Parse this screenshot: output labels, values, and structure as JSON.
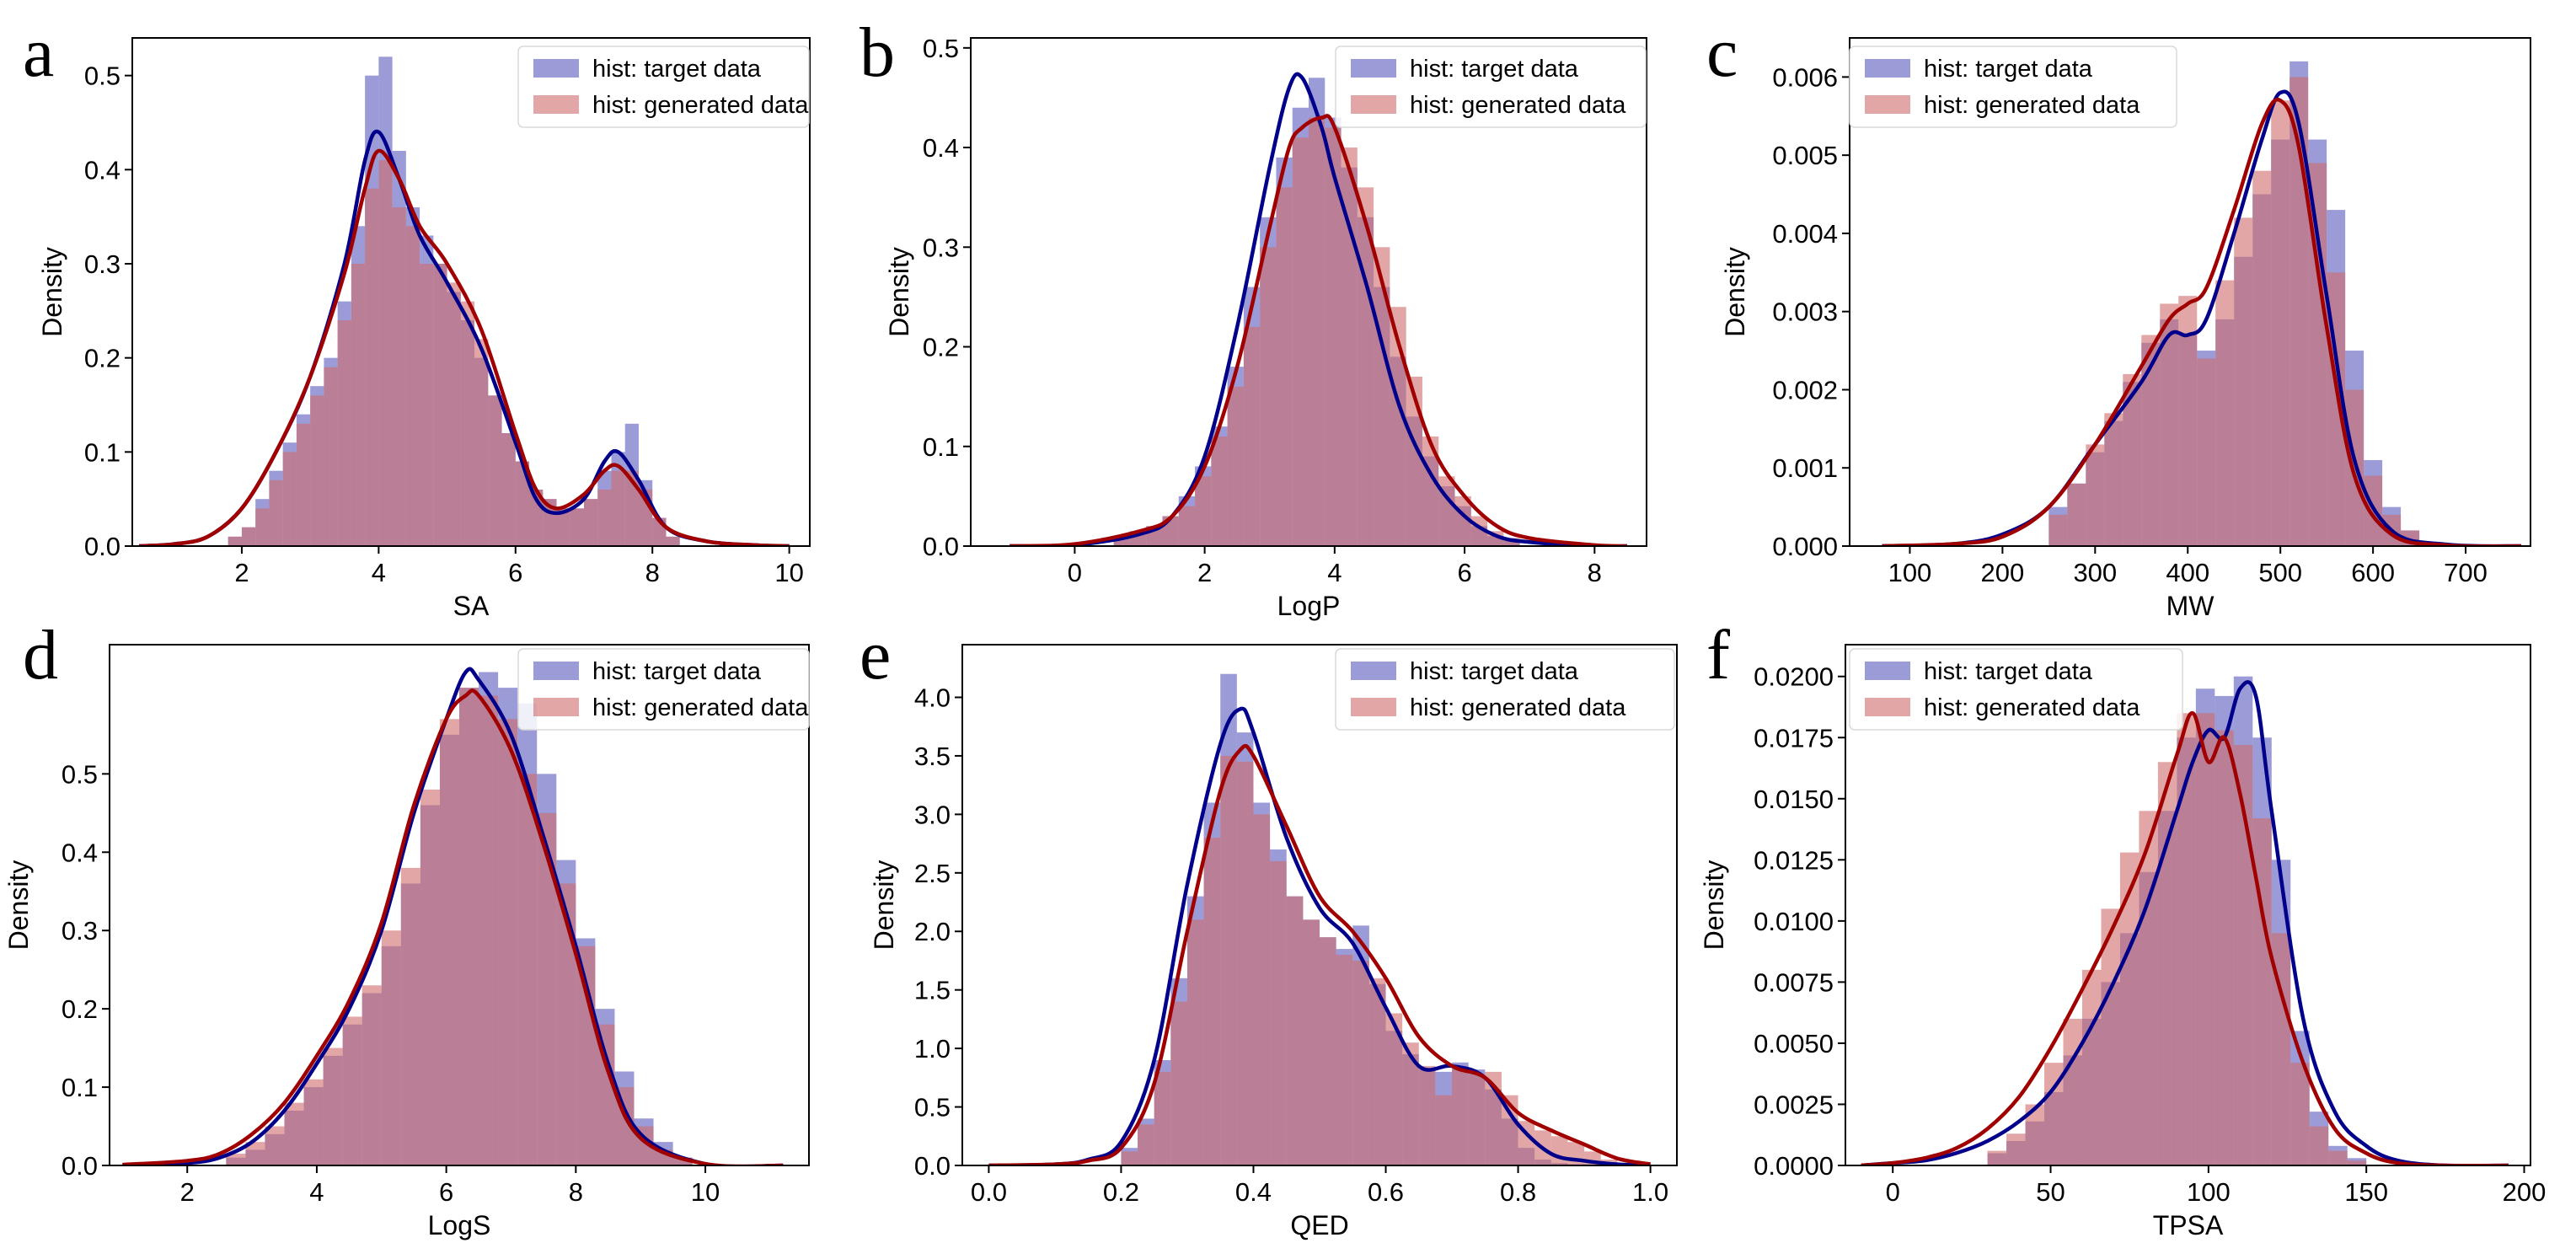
{
  "colors": {
    "target_hist": "#6b6bc6",
    "generated_hist": "#cf6a6a",
    "target_kde": "#00008b",
    "generated_kde": "#a00000",
    "axes": "#000000",
    "background": "#ffffff"
  },
  "legend": {
    "target": "hist: target data",
    "generated": "hist: generated data"
  },
  "chart_data": [
    {
      "panel": "a",
      "type": "area",
      "xlabel": "SA",
      "ylabel": "Density",
      "xlim": [
        0.4,
        10.3
      ],
      "ylim": [
        0,
        0.54
      ],
      "xticks": [
        2,
        4,
        6,
        8,
        10
      ],
      "xtick_labels": [
        "2",
        "4",
        "6",
        "8",
        "10"
      ],
      "yticks": [
        0,
        0.1,
        0.2,
        0.3,
        0.4,
        0.5
      ],
      "ytick_labels": [
        "0.0",
        "0.1",
        "0.2",
        "0.3",
        "0.4",
        "0.5"
      ],
      "bin_start": 1.8,
      "bin_width": 0.2,
      "hist_target": [
        0.01,
        0.02,
        0.05,
        0.08,
        0.11,
        0.14,
        0.17,
        0.2,
        0.26,
        0.34,
        0.5,
        0.52,
        0.42,
        0.36,
        0.33,
        0.3,
        0.27,
        0.24,
        0.2,
        0.16,
        0.12,
        0.09,
        0.06,
        0.05,
        0.04,
        0.04,
        0.05,
        0.08,
        0.1,
        0.13,
        0.07,
        0.03,
        0.01
      ],
      "hist_generated": [
        0.01,
        0.02,
        0.04,
        0.07,
        0.1,
        0.13,
        0.16,
        0.19,
        0.24,
        0.3,
        0.38,
        0.41,
        0.36,
        0.34,
        0.3,
        0.3,
        0.28,
        0.26,
        0.22,
        0.16,
        0.12,
        0.09,
        0.06,
        0.05,
        0.04,
        0.04,
        0.05,
        0.06,
        0.08,
        0.08,
        0.06,
        0.03,
        0.01
      ],
      "kde_x": [
        0.5,
        1.0,
        1.5,
        2.0,
        2.5,
        3.0,
        3.5,
        3.8,
        4.0,
        4.3,
        4.6,
        5.0,
        5.5,
        6.0,
        6.3,
        6.6,
        7.0,
        7.3,
        7.5,
        7.8,
        8.2,
        8.8,
        9.5,
        10.0
      ],
      "kde_target": [
        0.0,
        0.002,
        0.01,
        0.04,
        0.1,
        0.18,
        0.3,
        0.41,
        0.44,
        0.39,
        0.33,
        0.28,
        0.21,
        0.11,
        0.05,
        0.035,
        0.05,
        0.09,
        0.1,
        0.07,
        0.02,
        0.005,
        0.001,
        0.0
      ],
      "kde_generated": [
        0.0,
        0.002,
        0.01,
        0.04,
        0.1,
        0.18,
        0.29,
        0.38,
        0.42,
        0.39,
        0.34,
        0.3,
        0.23,
        0.12,
        0.06,
        0.04,
        0.055,
        0.08,
        0.085,
        0.06,
        0.02,
        0.005,
        0.001,
        0.0
      ]
    },
    {
      "panel": "b",
      "type": "area",
      "xlabel": "LogP",
      "ylabel": "Density",
      "xlim": [
        -1.6,
        8.8
      ],
      "ylim": [
        0,
        0.51
      ],
      "xticks": [
        0,
        2,
        4,
        6,
        8
      ],
      "xtick_labels": [
        "0",
        "2",
        "4",
        "6",
        "8"
      ],
      "yticks": [
        0,
        0.1,
        0.2,
        0.3,
        0.4,
        0.5
      ],
      "ytick_labels": [
        "0.0",
        "0.1",
        "0.2",
        "0.3",
        "0.4",
        "0.5"
      ],
      "bin_start": 0.6,
      "bin_width": 0.25,
      "hist_target": [
        0.01,
        0.015,
        0.02,
        0.03,
        0.05,
        0.08,
        0.12,
        0.18,
        0.26,
        0.33,
        0.39,
        0.44,
        0.47,
        0.43,
        0.38,
        0.33,
        0.26,
        0.19,
        0.13,
        0.09,
        0.06,
        0.04,
        0.02,
        0.01,
        0.005
      ],
      "hist_generated": [
        0.01,
        0.012,
        0.02,
        0.03,
        0.04,
        0.07,
        0.11,
        0.16,
        0.22,
        0.3,
        0.36,
        0.41,
        0.43,
        0.42,
        0.4,
        0.36,
        0.3,
        0.24,
        0.17,
        0.11,
        0.07,
        0.05,
        0.03,
        0.015,
        0.008
      ],
      "kde_x": [
        -1.0,
        0.0,
        1.0,
        1.5,
        2.0,
        2.5,
        3.0,
        3.3,
        3.5,
        3.8,
        4.0,
        4.5,
        5.0,
        5.5,
        6.0,
        6.5,
        7.0,
        8.0,
        8.5
      ],
      "kde_target": [
        0.0,
        0.001,
        0.012,
        0.03,
        0.09,
        0.22,
        0.38,
        0.46,
        0.47,
        0.42,
        0.37,
        0.26,
        0.14,
        0.07,
        0.03,
        0.01,
        0.004,
        0.0,
        0.0
      ],
      "kde_generated": [
        0.0,
        0.002,
        0.015,
        0.03,
        0.08,
        0.18,
        0.32,
        0.4,
        0.42,
        0.43,
        0.42,
        0.32,
        0.2,
        0.1,
        0.05,
        0.02,
        0.008,
        0.001,
        0.0
      ]
    },
    {
      "panel": "c",
      "type": "area",
      "xlabel": "MW",
      "ylabel": "Density",
      "xlim": [
        35,
        770
      ],
      "ylim": [
        0,
        0.0065
      ],
      "xticks": [
        100,
        200,
        300,
        400,
        500,
        600,
        700
      ],
      "xtick_labels": [
        "100",
        "200",
        "300",
        "400",
        "500",
        "600",
        "700"
      ],
      "yticks": [
        0,
        0.001,
        0.002,
        0.003,
        0.004,
        0.005,
        0.006
      ],
      "ytick_labels": [
        "0.000",
        "0.001",
        "0.002",
        "0.003",
        "0.004",
        "0.005",
        "0.006"
      ],
      "bin_start": 250,
      "bin_width": 20,
      "hist_target": [
        0.0005,
        0.0008,
        0.0012,
        0.0016,
        0.0021,
        0.0026,
        0.0029,
        0.0027,
        0.0025,
        0.0029,
        0.0037,
        0.0045,
        0.0052,
        0.0062,
        0.0052,
        0.0043,
        0.0025,
        0.0011,
        0.0005,
        0.0002
      ],
      "hist_generated": [
        0.0004,
        0.0008,
        0.0013,
        0.0017,
        0.0022,
        0.0027,
        0.0031,
        0.0032,
        0.0024,
        0.0034,
        0.0042,
        0.0048,
        0.0057,
        0.006,
        0.0049,
        0.0035,
        0.002,
        0.0009,
        0.0004,
        0.0002
      ],
      "kde_x": [
        70,
        150,
        200,
        250,
        300,
        350,
        380,
        400,
        420,
        450,
        480,
        500,
        520,
        550,
        580,
        620,
        680,
        760
      ],
      "kde_target": [
        0.0,
        3e-05,
        0.00015,
        0.0005,
        0.0013,
        0.0021,
        0.0027,
        0.0027,
        0.0029,
        0.004,
        0.0052,
        0.0058,
        0.0054,
        0.0032,
        0.0011,
        0.0002,
        2e-05,
        0.0
      ],
      "kde_generated": [
        0.0,
        3e-05,
        0.00012,
        0.0005,
        0.0013,
        0.0023,
        0.0029,
        0.0031,
        0.0033,
        0.0043,
        0.0054,
        0.0057,
        0.0051,
        0.0028,
        0.0009,
        0.00015,
        1e-05,
        0.0
      ]
    },
    {
      "panel": "d",
      "type": "area",
      "xlabel": "LogS",
      "ylabel": "Density",
      "xlim": [
        0.8,
        11.6
      ],
      "ylim": [
        0,
        0.665
      ],
      "xticks": [
        2,
        4,
        6,
        8,
        10
      ],
      "xtick_labels": [
        "2",
        "4",
        "6",
        "8",
        "10"
      ],
      "yticks": [
        0,
        0.1,
        0.2,
        0.3,
        0.4,
        0.5
      ],
      "ytick_labels": [
        "0.0",
        "0.1",
        "0.2",
        "0.3",
        "0.4",
        "0.5"
      ],
      "bin_start": 2.6,
      "bin_width": 0.3,
      "hist_target": [
        0.01,
        0.02,
        0.04,
        0.07,
        0.1,
        0.14,
        0.18,
        0.22,
        0.28,
        0.36,
        0.46,
        0.55,
        0.61,
        0.63,
        0.61,
        0.59,
        0.5,
        0.39,
        0.29,
        0.2,
        0.12,
        0.06,
        0.03,
        0.01
      ],
      "hist_generated": [
        0.015,
        0.03,
        0.05,
        0.08,
        0.11,
        0.15,
        0.19,
        0.23,
        0.3,
        0.38,
        0.48,
        0.57,
        0.61,
        0.6,
        0.57,
        0.5,
        0.45,
        0.36,
        0.28,
        0.18,
        0.1,
        0.05,
        0.02,
        0.01
      ],
      "kde_x": [
        1.0,
        2.0,
        2.5,
        3.0,
        3.5,
        4.0,
        4.5,
        5.0,
        5.5,
        6.0,
        6.3,
        6.5,
        7.0,
        7.5,
        8.0,
        8.5,
        9.0,
        10.0,
        11.2
      ],
      "kde_target": [
        0.0,
        0.003,
        0.01,
        0.03,
        0.07,
        0.13,
        0.2,
        0.3,
        0.45,
        0.57,
        0.63,
        0.62,
        0.55,
        0.42,
        0.28,
        0.13,
        0.04,
        0.002,
        0.0
      ],
      "kde_generated": [
        0.001,
        0.006,
        0.015,
        0.04,
        0.08,
        0.14,
        0.21,
        0.31,
        0.46,
        0.57,
        0.6,
        0.6,
        0.53,
        0.41,
        0.27,
        0.12,
        0.035,
        0.002,
        0.0
      ]
    },
    {
      "panel": "e",
      "type": "area",
      "xlabel": "QED",
      "ylabel": "Density",
      "xlim": [
        -0.04,
        1.04
      ],
      "ylim": [
        0,
        4.45
      ],
      "xticks": [
        0,
        0.2,
        0.4,
        0.6,
        0.8,
        1.0
      ],
      "xtick_labels": [
        "0.0",
        "0.2",
        "0.4",
        "0.6",
        "0.8",
        "1.0"
      ],
      "yticks": [
        0,
        0.5,
        1.0,
        1.5,
        2.0,
        2.5,
        3.0,
        3.5,
        4.0
      ],
      "ytick_labels": [
        "0.0",
        "0.5",
        "1.0",
        "1.5",
        "2.0",
        "2.5",
        "3.0",
        "3.5",
        "4.0"
      ],
      "bin_start": 0.2,
      "bin_width": 0.025,
      "hist_target": [
        0.15,
        0.4,
        0.9,
        1.6,
        2.3,
        3.1,
        4.2,
        3.7,
        3.1,
        2.7,
        2.3,
        2.1,
        1.95,
        1.85,
        2.05,
        1.55,
        1.15,
        0.95,
        0.82,
        0.8,
        0.88,
        0.82,
        0.65,
        0.4,
        0.15,
        0.05,
        0.02,
        0.01,
        0.01,
        0.0
      ],
      "hist_generated": [
        0.12,
        0.35,
        0.8,
        1.4,
        2.1,
        2.8,
        3.5,
        3.45,
        3.0,
        2.6,
        2.3,
        2.1,
        1.95,
        1.8,
        1.75,
        1.6,
        1.3,
        1.05,
        0.85,
        0.6,
        0.82,
        0.78,
        0.8,
        0.6,
        0.38,
        0.3,
        0.25,
        0.2,
        0.12,
        0.05
      ],
      "kde_x": [
        0.0,
        0.1,
        0.15,
        0.2,
        0.25,
        0.3,
        0.35,
        0.38,
        0.4,
        0.45,
        0.5,
        0.55,
        0.6,
        0.65,
        0.7,
        0.75,
        0.8,
        0.85,
        0.9,
        0.95,
        1.0
      ],
      "kde_target": [
        0.0,
        0.01,
        0.05,
        0.2,
        0.9,
        2.4,
        3.6,
        3.9,
        3.7,
        2.8,
        2.2,
        1.9,
        1.35,
        0.85,
        0.85,
        0.75,
        0.35,
        0.1,
        0.04,
        0.01,
        0.0
      ],
      "kde_generated": [
        0.0,
        0.01,
        0.04,
        0.15,
        0.7,
        2.0,
        3.2,
        3.55,
        3.5,
        2.9,
        2.3,
        2.0,
        1.6,
        1.1,
        0.85,
        0.75,
        0.45,
        0.3,
        0.18,
        0.06,
        0.01
      ]
    },
    {
      "panel": "f",
      "type": "area",
      "xlabel": "TPSA",
      "ylabel": "Density",
      "xlim": [
        -15,
        202
      ],
      "ylim": [
        0,
        0.0213
      ],
      "xticks": [
        0,
        50,
        100,
        150,
        200
      ],
      "xtick_labels": [
        "0",
        "50",
        "100",
        "150",
        "200"
      ],
      "yticks": [
        0,
        0.0025,
        0.005,
        0.0075,
        0.01,
        0.0125,
        0.015,
        0.0175,
        0.02
      ],
      "ytick_labels": [
        "0.0000",
        "0.0025",
        "0.0050",
        "0.0075",
        "0.0100",
        "0.0125",
        "0.0150",
        "0.0175",
        "0.0200"
      ],
      "bin_start": 30,
      "bin_width": 6,
      "hist_target": [
        0.0005,
        0.001,
        0.0018,
        0.003,
        0.0045,
        0.006,
        0.0075,
        0.0095,
        0.012,
        0.0145,
        0.0175,
        0.0195,
        0.0192,
        0.02,
        0.0175,
        0.0125,
        0.0055,
        0.0022,
        0.0008,
        0.0003
      ],
      "hist_generated": [
        0.0006,
        0.0013,
        0.0025,
        0.0042,
        0.006,
        0.008,
        0.0105,
        0.0128,
        0.0145,
        0.0165,
        0.0185,
        0.0185,
        0.0178,
        0.0172,
        0.0142,
        0.0095,
        0.0042,
        0.0016,
        0.0006,
        0.0002
      ],
      "kde_x": [
        -10,
        0,
        10,
        20,
        30,
        40,
        50,
        60,
        70,
        80,
        90,
        95,
        100,
        105,
        110,
        115,
        120,
        130,
        140,
        150,
        160,
        175,
        195
      ],
      "kde_target": [
        0.0,
        0.0001,
        0.0002,
        0.0005,
        0.001,
        0.0018,
        0.003,
        0.005,
        0.0075,
        0.0105,
        0.0145,
        0.0165,
        0.0178,
        0.0175,
        0.0195,
        0.0192,
        0.0145,
        0.006,
        0.0022,
        0.0008,
        0.0002,
        0.0,
        0.0
      ],
      "kde_generated": [
        0.0,
        0.0001,
        0.0003,
        0.0007,
        0.0015,
        0.0028,
        0.0048,
        0.0072,
        0.0098,
        0.0128,
        0.0168,
        0.0185,
        0.0165,
        0.0175,
        0.0152,
        0.0118,
        0.0085,
        0.0042,
        0.0015,
        0.0005,
        0.0001,
        0.0,
        0.0
      ]
    }
  ]
}
